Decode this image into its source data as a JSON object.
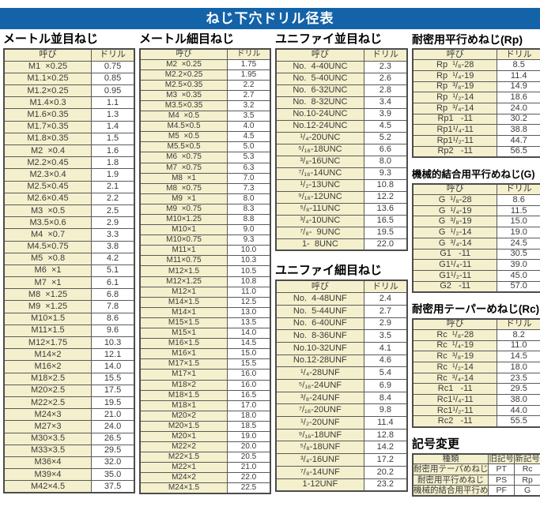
{
  "title": "ねじ下穴ドリル径表",
  "table_headers": {
    "name": "呼び",
    "drill": "ドリル"
  },
  "sections": {
    "metric_coarse": {
      "title": "メートル並目ねじ",
      "rows": [
        [
          "M1  ×0.25",
          "0.75"
        ],
        [
          "M1.1×0.25",
          "0.85"
        ],
        [
          "M1.2×0.25",
          "0.95"
        ],
        [
          "M1.4×0.3",
          "1.1"
        ],
        [
          "M1.6×0.35",
          "1.3"
        ],
        [
          "M1.7×0.35",
          "1.4"
        ],
        [
          "M1.8×0.35",
          "1.5"
        ],
        [
          "M2  ×0.4",
          "1.6"
        ],
        [
          "M2.2×0.45",
          "1.8"
        ],
        [
          "M2.3×0.4",
          "1.9"
        ],
        [
          "M2.5×0.45",
          "2.1"
        ],
        [
          "M2.6×0.45",
          "2.2"
        ],
        [
          "M3  ×0.5",
          "2.5"
        ],
        [
          "M3.5×0.6",
          "2.9"
        ],
        [
          "M4  ×0.7",
          "3.3"
        ],
        [
          "M4.5×0.75",
          "3.8"
        ],
        [
          "M5  ×0.8",
          "4.2"
        ],
        [
          "M6  ×1",
          "5.1"
        ],
        [
          "M7  ×1",
          "6.1"
        ],
        [
          "M8  ×1.25",
          "6.8"
        ],
        [
          "M9  ×1.25",
          "7.8"
        ],
        [
          "M10×1.5",
          "8.6"
        ],
        [
          "M11×1.5",
          "9.6"
        ],
        [
          "M12×1.75",
          "10.3"
        ],
        [
          "M14×2",
          "12.1"
        ],
        [
          "M16×2",
          "14.0"
        ],
        [
          "M18×2.5",
          "15.5"
        ],
        [
          "M20×2.5",
          "17.5"
        ],
        [
          "M22×2.5",
          "19.5"
        ],
        [
          "M24×3",
          "21.0"
        ],
        [
          "M27×3",
          "24.0"
        ],
        [
          "M30×3.5",
          "26.5"
        ],
        [
          "M33×3.5",
          "29.5"
        ],
        [
          "M36×4",
          "32.0"
        ],
        [
          "M39×4",
          "35.0"
        ],
        [
          "M42×4.5",
          "37.5"
        ]
      ]
    },
    "metric_fine": {
      "title": "メートル細目ねじ",
      "rows": [
        [
          "M2  ×0.25",
          "1.75"
        ],
        [
          "M2.2×0.25",
          "1.95"
        ],
        [
          "M2.5×0.35",
          "2.2"
        ],
        [
          "M3  ×0.35",
          "2.7"
        ],
        [
          "M3.5×0.35",
          "3.2"
        ],
        [
          "M4  ×0.5",
          "3.5"
        ],
        [
          "M4.5×0.5",
          "4.0"
        ],
        [
          "M5  ×0.5",
          "4.5"
        ],
        [
          "M5.5×0.5",
          "5.0"
        ],
        [
          "M6  ×0.75",
          "5.3"
        ],
        [
          "M7  ×0.75",
          "6.3"
        ],
        [
          "M8  ×1",
          "7.0"
        ],
        [
          "M8  ×0.75",
          "7.3"
        ],
        [
          "M9  ×1",
          "8.0"
        ],
        [
          "M9  ×0.75",
          "8.3"
        ],
        [
          "M10×1.25",
          "8.8"
        ],
        [
          "M10×1",
          "9.0"
        ],
        [
          "M10×0.75",
          "9.3"
        ],
        [
          "M11×1",
          "10.0"
        ],
        [
          "M11×0.75",
          "10.3"
        ],
        [
          "M12×1.5",
          "10.5"
        ],
        [
          "M12×1.25",
          "10.8"
        ],
        [
          "M12×1",
          "11.0"
        ],
        [
          "M14×1.5",
          "12.5"
        ],
        [
          "M14×1",
          "13.0"
        ],
        [
          "M15×1.5",
          "13.5"
        ],
        [
          "M15×1",
          "14.0"
        ],
        [
          "M16×1.5",
          "14.5"
        ],
        [
          "M16×1",
          "15.0"
        ],
        [
          "M17×1.5",
          "15.5"
        ],
        [
          "M17×1",
          "16.0"
        ],
        [
          "M18×2",
          "16.0"
        ],
        [
          "M18×1.5",
          "16.5"
        ],
        [
          "M18×1",
          "17.0"
        ],
        [
          "M20×2",
          "18.0"
        ],
        [
          "M20×1.5",
          "18.5"
        ],
        [
          "M20×1",
          "19.0"
        ],
        [
          "M22×2",
          "20.0"
        ],
        [
          "M22×1.5",
          "20.5"
        ],
        [
          "M22×1",
          "21.0"
        ],
        [
          "M24×2",
          "22.0"
        ],
        [
          "M24×1.5",
          "22.5"
        ]
      ]
    },
    "unified_coarse": {
      "title": "ユニファイ並目ねじ",
      "rows": [
        [
          "No.  4-40UNC",
          "2.3"
        ],
        [
          "No.  5-40UNC",
          "2.6"
        ],
        [
          "No.  6-32UNC",
          "2.8"
        ],
        [
          "No.  8-32UNC",
          "3.4"
        ],
        [
          "No.10-24UNC",
          "3.9"
        ],
        [
          "No.12-24UNC",
          "4.5"
        ],
        [
          "¹/₄-20UNC",
          "5.2"
        ],
        [
          "⁵/₁₆-18UNC",
          "6.6"
        ],
        [
          "³/₈-16UNC",
          "8.0"
        ],
        [
          "⁷/₁₆-14UNC",
          "9.3"
        ],
        [
          "¹/₂-13UNC",
          "10.8"
        ],
        [
          "⁹/₁₆-12UNC",
          "12.2"
        ],
        [
          "⁵/₈-11UNC",
          "13.6"
        ],
        [
          "³/₄-10UNC",
          "16.5"
        ],
        [
          "⁷/₈-  9UNC",
          "19.5"
        ],
        [
          "1-  8UNC",
          "22.0"
        ]
      ]
    },
    "unified_fine": {
      "title": "ユニファイ細目ねじ",
      "rows": [
        [
          "No.  4-48UNF",
          "2.4"
        ],
        [
          "No.  5-44UNF",
          "2.7"
        ],
        [
          "No.  6-40UNF",
          "2.9"
        ],
        [
          "No.  8-36UNF",
          "3.5"
        ],
        [
          "No.10-32UNF",
          "4.1"
        ],
        [
          "No.12-28UNF",
          "4.6"
        ],
        [
          "¹/₄-28UNF",
          "5.4"
        ],
        [
          "⁵/₁₆-24UNF",
          "6.9"
        ],
        [
          "³/₈-24UNF",
          "8.4"
        ],
        [
          "⁷/₁₆-20UNF",
          "9.8"
        ],
        [
          "¹/₂-20UNF",
          "11.4"
        ],
        [
          "⁹/₁₆-18UNF",
          "12.8"
        ],
        [
          "⁵/₈-18UNF",
          "14.2"
        ],
        [
          "³/₄-16UNF",
          "17.2"
        ],
        [
          "⁷/₈-14UNF",
          "20.2"
        ],
        [
          "1-12UNF",
          "23.2"
        ]
      ]
    },
    "rp": {
      "title": "耐密用平行めねじ(Rp)",
      "rows": [
        [
          "Rp  ¹/₈-28",
          "8.5"
        ],
        [
          "Rp  ¹/₄-19",
          "11.4"
        ],
        [
          "Rp  ³/₈-19",
          "14.9"
        ],
        [
          "Rp  ¹/₂-14",
          "18.6"
        ],
        [
          "Rp  ³/₄-14",
          "24.0"
        ],
        [
          "Rp1   -11",
          "30.2"
        ],
        [
          "Rp1¹/₄-11",
          "38.8"
        ],
        [
          "Rp1¹/₂-11",
          "44.7"
        ],
        [
          "Rp2   -11",
          "56.5"
        ]
      ]
    },
    "g": {
      "title": "機械的結合用平行めねじ(G)",
      "rows": [
        [
          "G  ¹/₈-28",
          "8.6"
        ],
        [
          "G  ¹/₄-19",
          "11.5"
        ],
        [
          "G  ³/₈-19",
          "15.0"
        ],
        [
          "G  ¹/₂-14",
          "19.0"
        ],
        [
          "G  ³/₄-14",
          "24.5"
        ],
        [
          "G1   -11",
          "30.5"
        ],
        [
          "G1¹/₄-11",
          "39.0"
        ],
        [
          "G1¹/₂-11",
          "45.0"
        ],
        [
          "G2   -11",
          "57.0"
        ]
      ]
    },
    "rc": {
      "title": "耐密用テーパーめねじ(Rc)",
      "rows": [
        [
          "Rc  ¹/₈-28",
          "8.2"
        ],
        [
          "Rc  ¹/₄-19",
          "11.0"
        ],
        [
          "Rc  ³/₈-19",
          "14.5"
        ],
        [
          "Rc  ¹/₂-14",
          "18.0"
        ],
        [
          "Rc  ³/₄-14",
          "23.5"
        ],
        [
          "Rc1   -11",
          "29.5"
        ],
        [
          "Rc1¹/₄-11",
          "38.0"
        ],
        [
          "Rc1¹/₂-11",
          "44.0"
        ],
        [
          "Rc2   -11",
          "55.5"
        ]
      ]
    }
  },
  "symbol_change": {
    "title": "記号変更",
    "headers": [
      "種類",
      "旧記号",
      "新記号"
    ],
    "rows": [
      [
        "耐密用テーパめねじ",
        "PT",
        "Rc"
      ],
      [
        "耐密用平行めねじ",
        "PS",
        "Rp"
      ],
      [
        "機械的結合用平行めねじ",
        "PF",
        "G"
      ]
    ]
  },
  "colors": {
    "title_bar": "#1463a8",
    "header_cell": "#f4f0cd",
    "border": "#4c4c4c"
  }
}
